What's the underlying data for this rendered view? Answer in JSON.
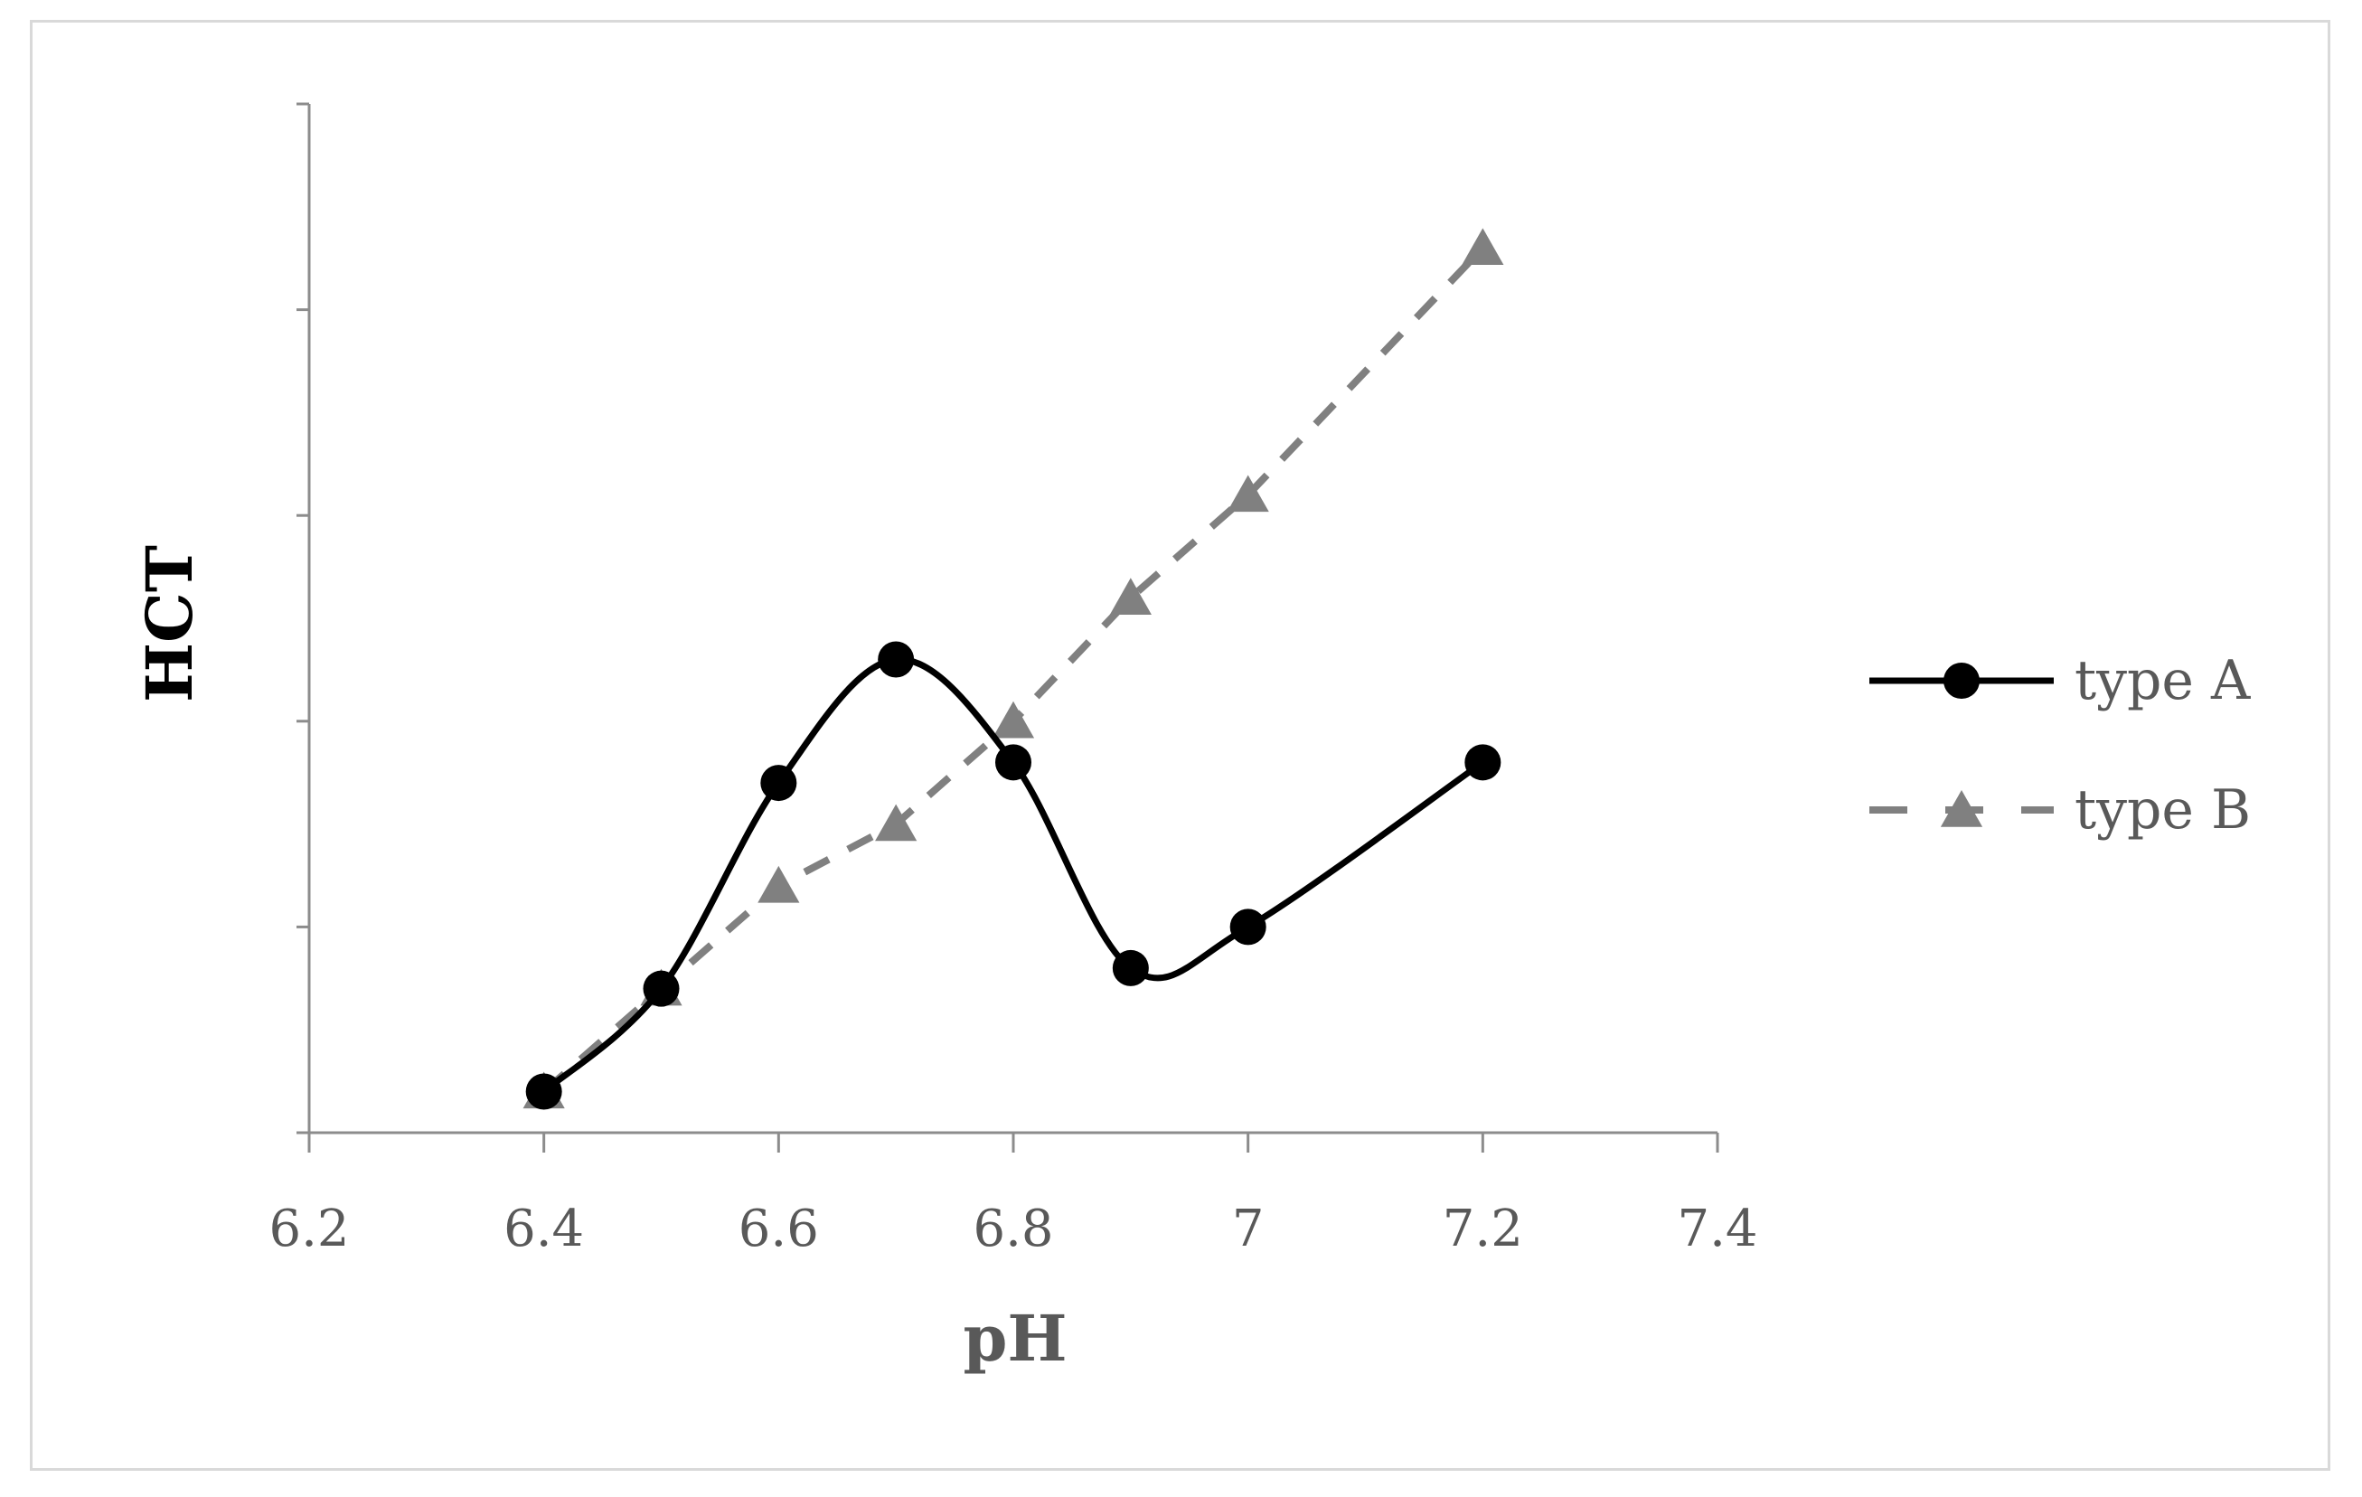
{
  "chart_data": {
    "type": "line",
    "title": "",
    "xlabel": "pH",
    "ylabel": "HCT",
    "xlim": [
      6.2,
      7.4
    ],
    "ylim": [
      0,
      5
    ],
    "x_ticks": [
      "6.2",
      "6.4",
      "6.6",
      "6.8",
      "7",
      "7.2",
      "7.4"
    ],
    "y_ticks_labeled": false,
    "grid": false,
    "legend_position": "right",
    "series": [
      {
        "name": "type A",
        "style": "solid",
        "smooth": true,
        "marker": "circle",
        "color": "#000000",
        "x": [
          6.4,
          6.5,
          6.6,
          6.7,
          6.8,
          6.9,
          7.0,
          7.2
        ],
        "y": [
          0.2,
          0.7,
          1.7,
          2.3,
          1.8,
          0.8,
          1.0,
          1.8
        ]
      },
      {
        "name": "type B",
        "style": "dashed",
        "smooth": false,
        "marker": "triangle",
        "color": "#808080",
        "x": [
          6.4,
          6.5,
          6.6,
          6.7,
          6.8,
          6.9,
          7.0,
          7.2
        ],
        "y": [
          0.2,
          0.7,
          1.2,
          1.5,
          2.0,
          2.6,
          3.1,
          4.3
        ]
      }
    ]
  }
}
